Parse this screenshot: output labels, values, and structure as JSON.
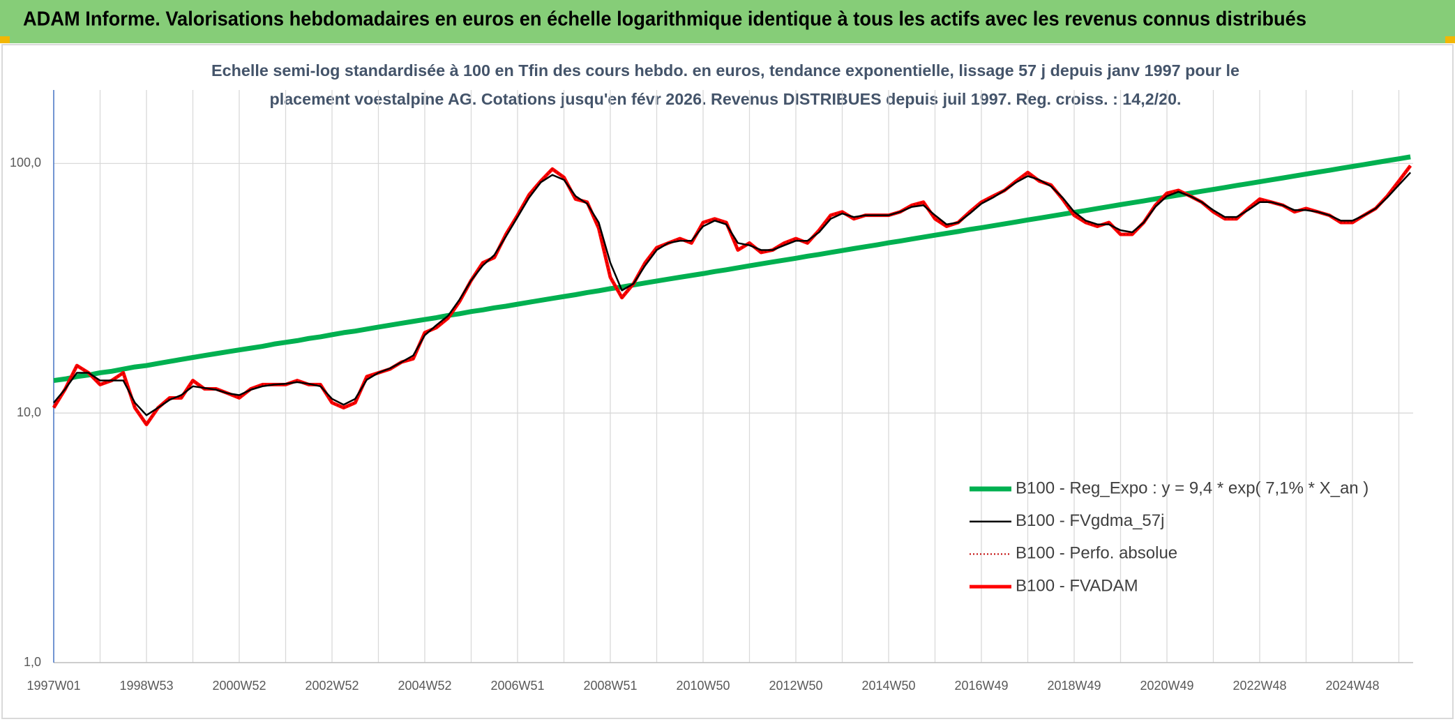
{
  "chart_data": {
    "type": "line",
    "title": "ADAM Informe. Valorisations hebdomadaires en euros en échelle logarithmique identique à tous les actifs avec les revenus connus distribués",
    "subtitle": [
      "Echelle semi-log standardisée à 100 en Tfin des cours hebdo. en euros, tendance exponentielle, lissage 57 j depuis janv 1997 pour le",
      "placement voestalpine AG. Cotations jusqu'en févr 2026. Revenus DISTRIBUES depuis juil 1997. Reg. croiss. : 14,2/20."
    ],
    "log_scale": true,
    "grid": true,
    "legend": "lower right",
    "ylim": [
      1,
      197
    ],
    "yticks": [
      {
        "value": 1,
        "label": "1,0"
      },
      {
        "value": 10,
        "label": "10,0"
      },
      {
        "value": 100,
        "label": "100,0"
      }
    ],
    "categories": [
      "1997W01",
      null,
      null,
      null,
      null,
      null,
      null,
      null,
      "1998W53",
      null,
      null,
      null,
      null,
      null,
      null,
      null,
      "2000W52",
      null,
      null,
      null,
      null,
      null,
      null,
      null,
      "2002W52",
      null,
      null,
      null,
      null,
      null,
      null,
      null,
      "2004W52",
      null,
      null,
      null,
      null,
      null,
      null,
      null,
      "2006W51",
      null,
      null,
      null,
      null,
      null,
      null,
      null,
      "2008W51",
      null,
      null,
      null,
      null,
      null,
      null,
      null,
      "2010W50",
      null,
      null,
      null,
      null,
      null,
      null,
      null,
      "2012W50",
      null,
      null,
      null,
      null,
      null,
      null,
      null,
      "2014W50",
      null,
      null,
      null,
      null,
      null,
      null,
      null,
      "2016W49",
      null,
      null,
      null,
      null,
      null,
      null,
      null,
      "2018W49",
      null,
      null,
      null,
      null,
      null,
      null,
      null,
      "2020W49",
      null,
      null,
      null,
      null,
      null,
      null,
      null,
      "2022W48",
      null,
      null,
      null,
      null,
      null,
      null,
      null,
      "2024W48",
      null,
      null,
      null,
      null,
      null
    ],
    "series": [
      {
        "name": "B100 - Reg_Expo : y = 9,4 * exp( 7,1% *  X_an )",
        "color": "#00b050",
        "values": [
          13.5,
          13.7,
          14.0,
          14.2,
          14.5,
          14.7,
          15.0,
          15.3,
          15.5,
          15.8,
          16.1,
          16.4,
          16.7,
          17.0,
          17.3,
          17.6,
          17.9,
          18.2,
          18.5,
          18.9,
          19.2,
          19.5,
          19.9,
          20.2,
          20.6,
          21.0,
          21.3,
          21.7,
          22.1,
          22.5,
          22.9,
          23.3,
          23.7,
          24.1,
          24.6,
          25.0,
          25.5,
          25.9,
          26.4,
          26.8,
          27.3,
          27.8,
          28.3,
          28.8,
          29.3,
          29.8,
          30.4,
          30.9,
          31.5,
          32.0,
          32.6,
          33.2,
          33.8,
          34.4,
          35.0,
          35.6,
          36.2,
          36.9,
          37.5,
          38.2,
          38.9,
          39.6,
          40.3,
          41.0,
          41.7,
          42.5,
          43.2,
          44.0,
          44.8,
          45.6,
          46.4,
          47.2,
          48.1,
          48.9,
          49.8,
          50.7,
          51.6,
          52.5,
          53.4,
          54.4,
          55.3,
          56.3,
          57.3,
          58.3,
          59.4,
          60.4,
          61.5,
          62.6,
          63.7,
          64.8,
          66.0,
          67.2,
          68.4,
          69.6,
          70.8,
          72.1,
          73.4,
          74.7,
          76.0,
          77.4,
          78.7,
          80.1,
          81.6,
          83.0,
          84.5,
          86.0,
          87.5,
          89.1,
          90.7,
          92.3,
          93.9,
          95.6,
          97.3,
          99.0,
          100.8,
          102.6,
          104.4,
          106.3
        ]
      },
      {
        "name": "B100 - FVgdma_57j",
        "color": "#000000",
        "values": [
          11,
          12.5,
          14.5,
          14.5,
          13.5,
          13.5,
          13.5,
          11,
          9.8,
          10.5,
          11.3,
          11.8,
          12.8,
          12.6,
          12.4,
          12,
          11.8,
          12.4,
          12.8,
          13,
          13.1,
          13.3,
          13.1,
          12.8,
          11.4,
          10.8,
          11.4,
          13.6,
          14.5,
          15.1,
          16,
          17,
          20.5,
          22.5,
          24.5,
          28.5,
          34,
          39,
          43,
          51,
          61,
          73,
          84,
          90,
          86,
          74,
          69,
          58,
          40,
          31,
          33,
          39,
          45,
          48,
          49,
          49,
          56,
          59,
          57,
          48,
          47,
          45,
          45,
          47,
          49,
          49,
          53,
          60,
          63,
          61,
          62,
          62,
          62,
          64,
          67,
          68,
          62,
          57,
          58,
          63,
          69,
          73,
          78,
          84,
          89,
          86,
          81,
          73,
          64,
          59,
          57,
          57,
          54,
          53,
          58,
          67,
          74,
          77,
          74,
          70,
          65,
          61,
          61,
          65,
          70,
          70,
          68,
          65,
          65,
          64,
          62,
          59,
          59,
          62,
          66,
          73,
          82,
          92
        ]
      },
      {
        "name": "B100 - Perfo. absolue",
        "color": "#c00000",
        "line_style": "dotted",
        "values": [
          10.5,
          12.5,
          15.5,
          14.5,
          13,
          13.5,
          14.5,
          10.5,
          9,
          10.5,
          11.5,
          11.5,
          13.5,
          12.5,
          12.5,
          12,
          11.5,
          12.5,
          13,
          13,
          13,
          13.5,
          13,
          13,
          11,
          10.5,
          11,
          14,
          14.5,
          15,
          16,
          16.5,
          21,
          22,
          24,
          28,
          34,
          40,
          42,
          52,
          62,
          75,
          85,
          95,
          88,
          72,
          70,
          55,
          35,
          29,
          33,
          40,
          46,
          48,
          50,
          48,
          58,
          60,
          58,
          45,
          48,
          44,
          45,
          48,
          50,
          48,
          54,
          62,
          64,
          60,
          62,
          62,
          62,
          64,
          68,
          70,
          60,
          56,
          58,
          64,
          70,
          74,
          78,
          85,
          92,
          85,
          82,
          72,
          62,
          58,
          56,
          58,
          52,
          52,
          58,
          68,
          76,
          78,
          74,
          70,
          64,
          60,
          60,
          66,
          72,
          70,
          68,
          64,
          66,
          64,
          62,
          58,
          58,
          62,
          66,
          74,
          85,
          98
        ]
      },
      {
        "name": "B100 - FVADAM",
        "color": "#ff0000",
        "values": [
          10.5,
          12.5,
          15.5,
          14.5,
          13,
          13.5,
          14.5,
          10.5,
          9,
          10.5,
          11.5,
          11.5,
          13.5,
          12.5,
          12.5,
          12,
          11.5,
          12.5,
          13,
          13,
          13,
          13.5,
          13,
          13,
          11,
          10.5,
          11,
          14,
          14.5,
          15,
          16,
          16.5,
          21,
          22,
          24,
          28,
          34,
          40,
          42,
          52,
          62,
          75,
          85,
          95,
          88,
          72,
          70,
          55,
          35,
          29,
          33,
          40,
          46,
          48,
          50,
          48,
          58,
          60,
          58,
          45,
          48,
          44,
          45,
          48,
          50,
          48,
          54,
          62,
          64,
          60,
          62,
          62,
          62,
          64,
          68,
          70,
          60,
          56,
          58,
          64,
          70,
          74,
          78,
          85,
          92,
          85,
          82,
          72,
          62,
          58,
          56,
          58,
          52,
          52,
          58,
          68,
          76,
          78,
          74,
          70,
          64,
          60,
          60,
          66,
          72,
          70,
          68,
          64,
          66,
          64,
          62,
          58,
          58,
          62,
          66,
          74,
          85,
          98
        ]
      }
    ]
  }
}
